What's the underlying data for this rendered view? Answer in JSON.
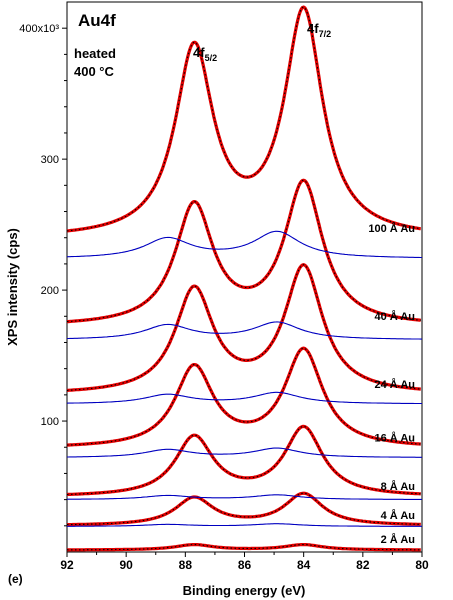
{
  "panel_label": "(e)",
  "chart_data": {
    "type": "line",
    "title": "Au4f",
    "annotation_lines": [
      "heated",
      "400 °C"
    ],
    "xlabel": "Binding energy (eV)",
    "ylabel": "XPS intensity (cps)",
    "xlim": [
      92,
      80
    ],
    "ylim": [
      0,
      420000
    ],
    "x_reversed": true,
    "grid": false,
    "x_ticks": [
      92,
      90,
      88,
      86,
      84,
      82,
      80
    ],
    "y_ticks": [
      {
        "value": 100000,
        "label": "100"
      },
      {
        "value": 200000,
        "label": "200"
      },
      {
        "value": 300000,
        "label": "300"
      },
      {
        "value": 400000,
        "label": "400x10³"
      }
    ],
    "peak_labels": [
      {
        "base": "4f",
        "sub": "5/2",
        "x": 87.7
      },
      {
        "base": "4f",
        "sub": "7/2",
        "x": 84.0
      }
    ],
    "peak_positions_eV": {
      "f52": 87.7,
      "f72": 84.0
    },
    "spectra": [
      {
        "label": "2 Å Au",
        "baseline": 1500,
        "h52": 4000,
        "h72": 4000,
        "comp_base": 0,
        "comp_h52": 0,
        "comp_h72": 0
      },
      {
        "label": "4 Å Au",
        "baseline": 20000,
        "h52": 21000,
        "h72": 24000,
        "comp_base": 19500,
        "comp_h52": 1500,
        "comp_h72": 2000
      },
      {
        "label": "8 Å Au",
        "baseline": 42000,
        "h52": 45000,
        "h72": 52000,
        "comp_base": 40000,
        "comp_h52": 3000,
        "comp_h72": 3500
      },
      {
        "label": "16 Å Au",
        "baseline": 79000,
        "h52": 61000,
        "h72": 74000,
        "comp_base": 72000,
        "comp_h52": 6000,
        "comp_h72": 7000
      },
      {
        "label": "24 Å Au",
        "baseline": 120000,
        "h52": 79000,
        "h72": 96000,
        "comp_base": 113000,
        "comp_h52": 7000,
        "comp_h72": 8500
      },
      {
        "label": "40 Å Au",
        "baseline": 172000,
        "h52": 91000,
        "h72": 108000,
        "comp_base": 162000,
        "comp_h52": 11000,
        "comp_h72": 13000
      },
      {
        "label": "100 Å Au",
        "baseline": 239000,
        "h52": 143000,
        "h72": 171000,
        "comp_base": 224000,
        "comp_h52": 15000,
        "comp_h72": 20000
      }
    ],
    "colors": {
      "data": "#e00000",
      "fit": "#000000",
      "component": "#0000c0",
      "frame": "#000000"
    }
  }
}
